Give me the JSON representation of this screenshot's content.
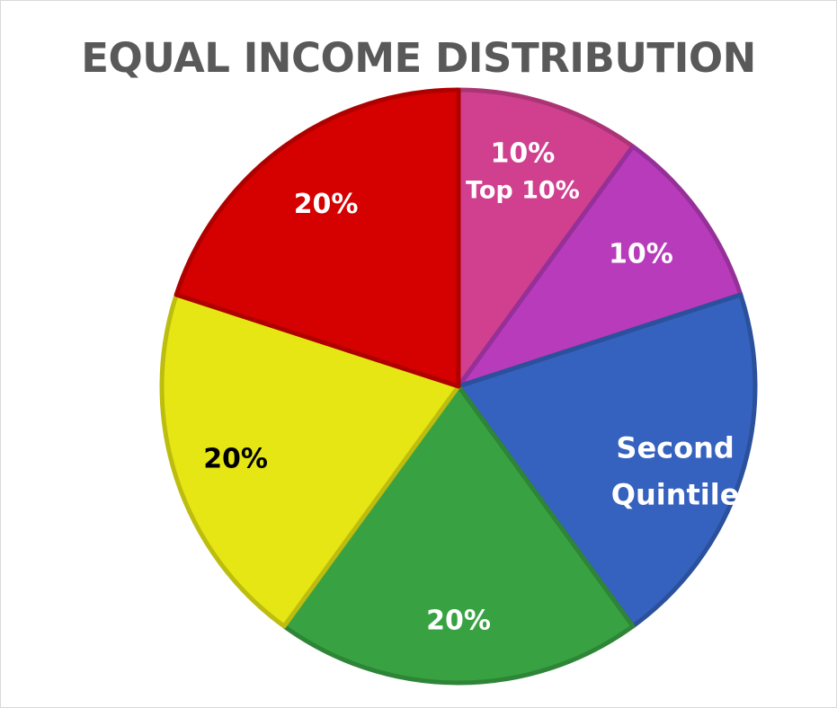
{
  "chart_data": {
    "type": "pie",
    "title": "EQUAL INCOME DISTRIBUTION",
    "slices": [
      {
        "value": 10,
        "label": "10%",
        "name": "Top 10%",
        "color": "#d0408f",
        "text_color": "#ffffff"
      },
      {
        "value": 10,
        "label": "10%",
        "name": "",
        "color": "#b73bbb",
        "text_color": "#ffffff"
      },
      {
        "value": 20,
        "label": "20%",
        "name": "Second Quintile",
        "color": "#3562be",
        "text_color": "#ffffff"
      },
      {
        "value": 20,
        "label": "20%",
        "name": "",
        "color": "#38a243",
        "text_color": "#ffffff"
      },
      {
        "value": 20,
        "label": "20%",
        "name": "",
        "color": "#e6e614",
        "text_color": "#000000"
      },
      {
        "value": 20,
        "label": "20%",
        "name": "",
        "color": "#d50000",
        "text_color": "#ffffff"
      }
    ],
    "start_angle": "12 o'clock",
    "direction": "clockwise"
  }
}
